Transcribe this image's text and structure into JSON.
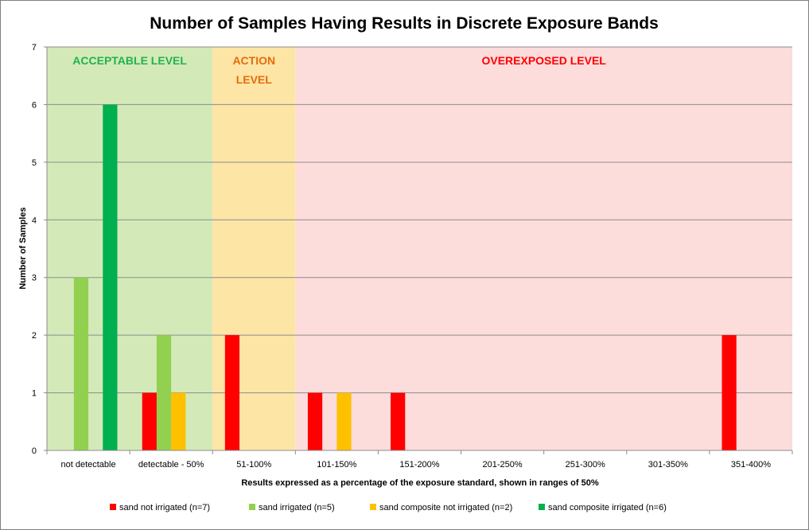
{
  "chart_data": {
    "type": "bar",
    "title": "Number of Samples Having Results in Discrete Exposure Bands",
    "xlabel": "Results expressed as a percentage of the exposure standard, shown in ranges of 50%",
    "ylabel": "Number of Samples",
    "ylim": [
      0,
      7
    ],
    "yticks": [
      0,
      1,
      2,
      3,
      4,
      5,
      6,
      7
    ],
    "grid": true,
    "legend_position": "bottom",
    "categories": [
      "not detectable",
      "detectable - 50%",
      "51-100%",
      "101-150%",
      "151-200%",
      "201-250%",
      "251-300%",
      "301-350%",
      "351-400%"
    ],
    "series": [
      {
        "name": "sand not irrigated (n=7)",
        "color": "#ff0000",
        "values": [
          0,
          1,
          2,
          1,
          1,
          0,
          0,
          0,
          2
        ]
      },
      {
        "name": "sand irrigated (n=5)",
        "color": "#92d050",
        "values": [
          3,
          2,
          0,
          0,
          0,
          0,
          0,
          0,
          0
        ]
      },
      {
        "name": "sand composite not irrigated (n=2)",
        "color": "#ffc000",
        "values": [
          0,
          1,
          0,
          1,
          0,
          0,
          0,
          0,
          0
        ]
      },
      {
        "name": "sand composite irrigated (n=6)",
        "color": "#00b050",
        "values": [
          6,
          0,
          0,
          0,
          0,
          0,
          0,
          0,
          0
        ]
      }
    ],
    "bands": [
      {
        "lines": [
          "ACCEPTABLE LEVEL"
        ],
        "from_category": 0,
        "to_category": 1,
        "fill": "#d3eab8",
        "text_color": "#22b24c"
      },
      {
        "lines": [
          "ACTION",
          "LEVEL"
        ],
        "from_category": 2,
        "to_category": 2,
        "fill": "#fde5a6",
        "text_color": "#e46c0a"
      },
      {
        "lines": [
          "OVEREXPOSED LEVEL"
        ],
        "from_category": 3,
        "to_category": 8,
        "fill": "#fddcdc",
        "text_color": "#ff0000"
      }
    ]
  }
}
